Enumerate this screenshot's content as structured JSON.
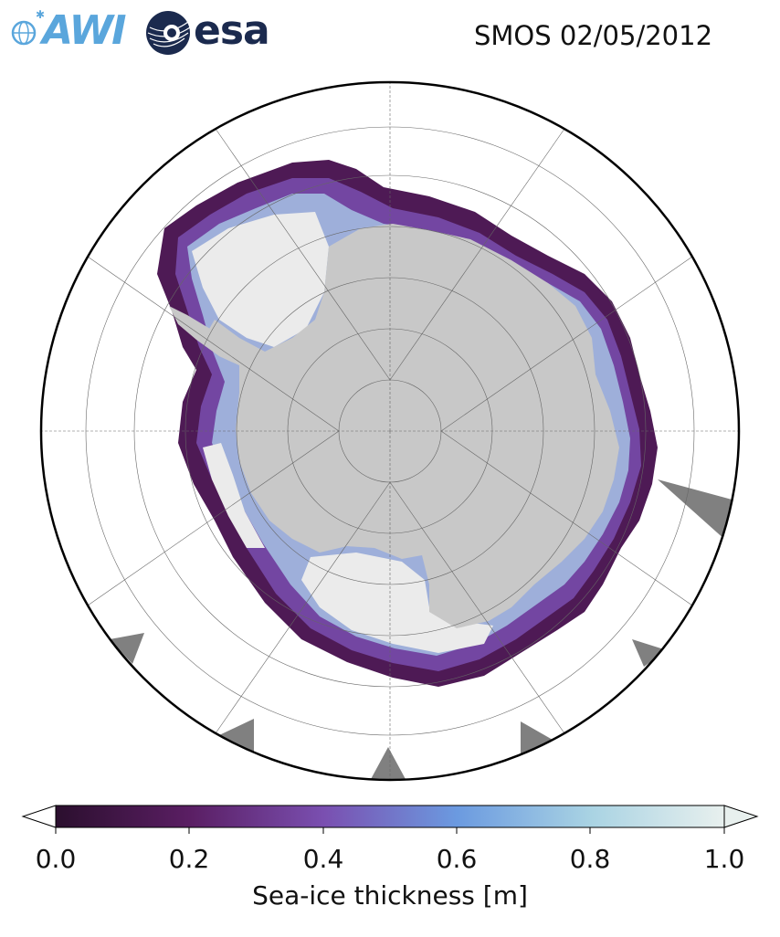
{
  "header": {
    "title": "SMOS 02/05/2012",
    "logo_awi": "AWI",
    "logo_esa": "esa"
  },
  "colorbar": {
    "label": "Sea-ice thickness [m]",
    "ticks": [
      "0.0",
      "0.2",
      "0.4",
      "0.6",
      "0.8",
      "1.0"
    ],
    "range": [
      0.0,
      1.0
    ],
    "colors": [
      "#2b0f2e",
      "#5a1e63",
      "#7a4fb0",
      "#6b9ae0",
      "#a9d3e3",
      "#e8f0ee"
    ],
    "extend": "both"
  },
  "map": {
    "projection": "south-polar-stereographic",
    "land_color": "#c8c8c8",
    "ice_shelf_color": "#ebebeb",
    "nodata_color": "#808080"
  }
}
